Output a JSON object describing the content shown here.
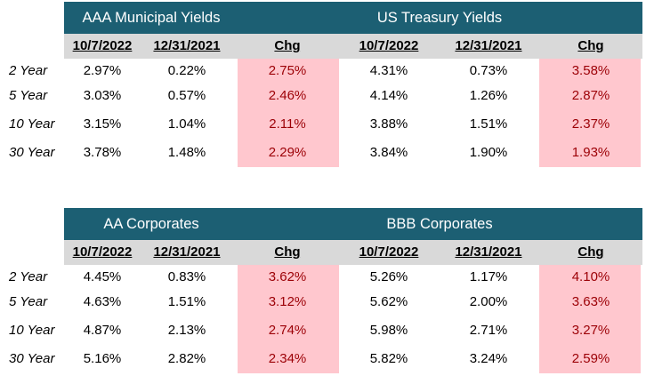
{
  "tables": [
    {
      "groups": [
        "AAA Municipal Yields",
        "US Treasury Yields"
      ],
      "columns": [
        "10/7/2022",
        "12/31/2021",
        "Chg",
        "10/7/2022",
        "12/31/2021",
        "Chg"
      ],
      "rows": [
        {
          "label": "2 Year",
          "values": [
            "2.97%",
            "0.22%",
            "2.75%",
            "4.31%",
            "0.73%",
            "3.58%"
          ]
        },
        {
          "label": "5 Year",
          "values": [
            "3.03%",
            "0.57%",
            "2.46%",
            "4.14%",
            "1.26%",
            "2.87%"
          ]
        },
        {
          "label": "10 Year",
          "values": [
            "3.15%",
            "1.04%",
            "2.11%",
            "3.88%",
            "1.51%",
            "2.37%"
          ]
        },
        {
          "label": "30 Year",
          "values": [
            "3.78%",
            "1.48%",
            "2.29%",
            "3.84%",
            "1.90%",
            "1.93%"
          ]
        }
      ]
    },
    {
      "groups": [
        "AA Corporates",
        "BBB Corporates"
      ],
      "columns": [
        "10/7/2022",
        "12/31/2021",
        "Chg",
        "10/7/2022",
        "12/31/2021",
        "Chg"
      ],
      "rows": [
        {
          "label": "2 Year",
          "values": [
            "4.45%",
            "0.83%",
            "3.62%",
            "5.26%",
            "1.17%",
            "4.10%"
          ]
        },
        {
          "label": "5 Year",
          "values": [
            "4.63%",
            "1.51%",
            "3.12%",
            "5.62%",
            "2.00%",
            "3.63%"
          ]
        },
        {
          "label": "10 Year",
          "values": [
            "4.87%",
            "2.13%",
            "2.74%",
            "5.98%",
            "2.71%",
            "3.27%"
          ]
        },
        {
          "label": "30 Year",
          "values": [
            "5.16%",
            "2.82%",
            "2.34%",
            "5.82%",
            "3.24%",
            "2.59%"
          ]
        }
      ]
    }
  ],
  "colors": {
    "header_bg": "#1c5f73",
    "subheader_bg": "#d9d9d9",
    "change_bg": "#ffc7ce",
    "change_text": "#9c0006"
  }
}
